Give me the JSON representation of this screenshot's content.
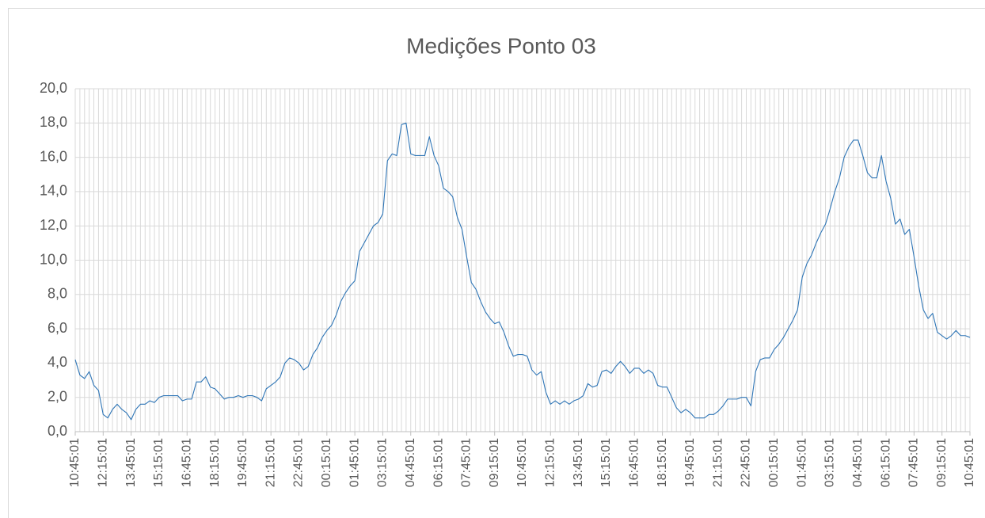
{
  "chart_data": {
    "type": "line",
    "title": "Medições Ponto 03",
    "categories": [
      "10:45:01",
      null,
      null,
      null,
      null,
      null,
      "12:15:01",
      null,
      null,
      null,
      null,
      null,
      "13:45:01",
      null,
      null,
      null,
      null,
      null,
      "15:15:01",
      null,
      null,
      null,
      null,
      null,
      "16:45:01",
      null,
      null,
      null,
      null,
      null,
      "18:15:01",
      null,
      null,
      null,
      null,
      null,
      "19:45:01",
      null,
      null,
      null,
      null,
      null,
      "21:15:01",
      null,
      null,
      null,
      null,
      null,
      "22:45:01",
      null,
      null,
      null,
      null,
      null,
      "00:15:01",
      null,
      null,
      null,
      null,
      null,
      "01:45:01",
      null,
      null,
      null,
      null,
      null,
      "03:15:01",
      null,
      null,
      null,
      null,
      null,
      "04:45:01",
      null,
      null,
      null,
      null,
      null,
      "06:15:01",
      null,
      null,
      null,
      null,
      null,
      "07:45:01",
      null,
      null,
      null,
      null,
      null,
      "09:15:01",
      null,
      null,
      null,
      null,
      null,
      "10:45:01",
      null,
      null,
      null,
      null,
      null,
      "12:15:01",
      null,
      null,
      null,
      null,
      null,
      "13:45:01",
      null,
      null,
      null,
      null,
      null,
      "15:15:01",
      null,
      null,
      null,
      null,
      null,
      "16:45:01",
      null,
      null,
      null,
      null,
      null,
      "18:15:01",
      null,
      null,
      null,
      null,
      null,
      "19:45:01",
      null,
      null,
      null,
      null,
      null,
      "21:15:01",
      null,
      null,
      null,
      null,
      null,
      "22:45:01",
      null,
      null,
      null,
      null,
      null,
      "00:15:01",
      null,
      null,
      null,
      null,
      null,
      "01:45:01",
      null,
      null,
      null,
      null,
      null,
      "03:15:01",
      null,
      null,
      null,
      null,
      null,
      "04:45:01",
      null,
      null,
      null,
      null,
      null,
      "06:15:01",
      null,
      null,
      null,
      null,
      null,
      "07:45:01",
      null,
      null,
      null,
      null,
      null,
      "09:15:01",
      null,
      null,
      null,
      null,
      null,
      "10:45:01"
    ],
    "values": [
      4.2,
      3.3,
      3.1,
      3.5,
      2.7,
      2.4,
      1.0,
      0.8,
      1.3,
      1.6,
      1.3,
      1.1,
      0.7,
      1.3,
      1.6,
      1.6,
      1.8,
      1.7,
      2.0,
      2.1,
      2.1,
      2.1,
      2.1,
      1.8,
      1.9,
      1.9,
      2.9,
      2.9,
      3.2,
      2.6,
      2.5,
      2.2,
      1.9,
      2.0,
      2.0,
      2.1,
      2.0,
      2.1,
      2.1,
      2.0,
      1.8,
      2.5,
      2.7,
      2.9,
      3.2,
      4.0,
      4.3,
      4.2,
      4.0,
      3.6,
      3.8,
      4.5,
      4.9,
      5.5,
      5.9,
      6.2,
      6.8,
      7.6,
      8.1,
      8.5,
      8.8,
      10.5,
      11.0,
      11.5,
      12.0,
      12.2,
      12.7,
      15.8,
      16.2,
      16.1,
      17.9,
      18.0,
      16.2,
      16.1,
      16.1,
      16.1,
      17.2,
      16.1,
      15.5,
      14.2,
      14.0,
      13.7,
      12.5,
      11.8,
      10.2,
      8.7,
      8.3,
      7.6,
      7.0,
      6.6,
      6.3,
      6.4,
      5.8,
      5.0,
      4.4,
      4.5,
      4.5,
      4.4,
      3.6,
      3.3,
      3.5,
      2.3,
      1.6,
      1.8,
      1.6,
      1.8,
      1.6,
      1.8,
      1.9,
      2.1,
      2.8,
      2.6,
      2.7,
      3.5,
      3.6,
      3.4,
      3.8,
      4.1,
      3.8,
      3.4,
      3.7,
      3.7,
      3.4,
      3.6,
      3.4,
      2.7,
      2.6,
      2.6,
      2.0,
      1.4,
      1.1,
      1.3,
      1.1,
      0.8,
      0.8,
      0.8,
      1.0,
      1.0,
      1.2,
      1.5,
      1.9,
      1.9,
      1.9,
      2.0,
      2.0,
      1.5,
      3.5,
      4.2,
      4.3,
      4.3,
      4.8,
      5.1,
      5.5,
      6.0,
      6.5,
      7.1,
      9.0,
      9.8,
      10.3,
      11.0,
      11.6,
      12.1,
      13.0,
      14.0,
      14.8,
      16.0,
      16.6,
      17.0,
      17.0,
      16.1,
      15.1,
      14.8,
      14.8,
      16.1,
      14.6,
      13.6,
      12.1,
      12.4,
      11.5,
      11.8,
      10.2,
      8.5,
      7.1,
      6.6,
      6.9,
      5.8,
      5.6,
      5.4,
      5.6,
      5.9,
      5.6,
      5.6,
      5.5
    ],
    "color": "#2e75b6",
    "ylim": [
      0,
      20
    ],
    "yticks": [
      {
        "value": 0,
        "label": "0,0"
      },
      {
        "value": 2,
        "label": "2,0"
      },
      {
        "value": 4,
        "label": "4,0"
      },
      {
        "value": 6,
        "label": "6,0"
      },
      {
        "value": 8,
        "label": "8,0"
      },
      {
        "value": 10,
        "label": "10,0"
      },
      {
        "value": 12,
        "label": "12,0"
      },
      {
        "value": 14,
        "label": "14,0"
      },
      {
        "value": 16,
        "label": "16,0"
      },
      {
        "value": 18,
        "label": "18,0"
      },
      {
        "value": 20,
        "label": "20,0"
      }
    ],
    "grid": true
  }
}
